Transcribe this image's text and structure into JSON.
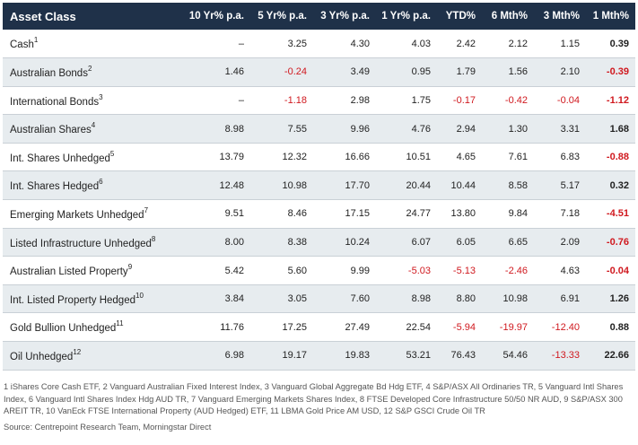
{
  "table": {
    "headers": [
      "Asset Class",
      "10 Yr% p.a.",
      "5 Yr% p.a.",
      "3 Yr% p.a.",
      "1 Yr% p.a.",
      "YTD%",
      "6 Mth%",
      "3 Mth%",
      "1 Mth%"
    ],
    "rows": [
      {
        "name": "Cash",
        "note": "1",
        "values": [
          "–",
          "3.25",
          "4.30",
          "4.03",
          "2.42",
          "2.12",
          "1.15",
          "0.39"
        ]
      },
      {
        "name": "Australian Bonds",
        "note": "2",
        "values": [
          "1.46",
          "-0.24",
          "3.49",
          "0.95",
          "1.79",
          "1.56",
          "2.10",
          "-0.39"
        ]
      },
      {
        "name": "International Bonds",
        "note": "3",
        "values": [
          "–",
          "-1.18",
          "2.98",
          "1.75",
          "-0.17",
          "-0.42",
          "-0.04",
          "-1.12"
        ]
      },
      {
        "name": "Australian Shares",
        "note": "4",
        "values": [
          "8.98",
          "7.55",
          "9.96",
          "4.76",
          "2.94",
          "1.30",
          "3.31",
          "1.68"
        ]
      },
      {
        "name": "Int. Shares Unhedged",
        "note": "5",
        "values": [
          "13.79",
          "12.32",
          "16.66",
          "10.51",
          "4.65",
          "7.61",
          "6.83",
          "-0.88"
        ]
      },
      {
        "name": "Int. Shares Hedged",
        "note": "6",
        "values": [
          "12.48",
          "10.98",
          "17.70",
          "20.44",
          "10.44",
          "8.58",
          "5.17",
          "0.32"
        ]
      },
      {
        "name": "Emerging Markets Unhedged",
        "note": "7",
        "values": [
          "9.51",
          "8.46",
          "17.15",
          "24.77",
          "13.80",
          "9.84",
          "7.18",
          "-4.51"
        ]
      },
      {
        "name": "Listed Infrastructure Unhedged",
        "note": "8",
        "values": [
          "8.00",
          "8.38",
          "10.24",
          "6.07",
          "6.05",
          "6.65",
          "2.09",
          "-0.76"
        ]
      },
      {
        "name": "Australian Listed Property",
        "note": "9",
        "values": [
          "5.42",
          "5.60",
          "9.99",
          "-5.03",
          "-5.13",
          "-2.46",
          "4.63",
          "-0.04"
        ]
      },
      {
        "name": "Int. Listed Property Hedged",
        "note": "10",
        "values": [
          "3.84",
          "3.05",
          "7.60",
          "8.98",
          "8.80",
          "10.98",
          "6.91",
          "1.26"
        ]
      },
      {
        "name": "Gold Bullion Unhedged",
        "note": "11",
        "values": [
          "11.76",
          "17.25",
          "27.49",
          "22.54",
          "-5.94",
          "-19.97",
          "-12.40",
          "0.88"
        ]
      },
      {
        "name": "Oil Unhedged",
        "note": "12",
        "values": [
          "6.98",
          "19.17",
          "19.83",
          "53.21",
          "76.43",
          "54.46",
          "-13.33",
          "22.66"
        ]
      }
    ]
  },
  "footnotes": "1 iShares Core Cash ETF, 2 Vanguard Australian Fixed Interest Index, 3 Vanguard Global Aggregate Bd Hdg ETF, 4 S&P/ASX All Ordinaries TR, 5 Vanguard Intl Shares Index, 6 Vanguard Intl Shares Index Hdg AUD TR, 7 Vanguard Emerging Markets Shares Index, 8 FTSE Developed Core Infrastructure 50/50 NR AUD, 9 S&P/ASX 300 AREIT TR, 10 VanEck FTSE International Property (AUD Hedged) ETF, 11 LBMA Gold Price AM USD, 12 S&P GSCI Crude Oil TR",
  "source": "Source: Centrepoint Research Team, Morningstar Direct",
  "colors": {
    "header_bg": "#1f3149",
    "alt_row_bg": "#e7ecef",
    "negative": "#d0191f"
  }
}
